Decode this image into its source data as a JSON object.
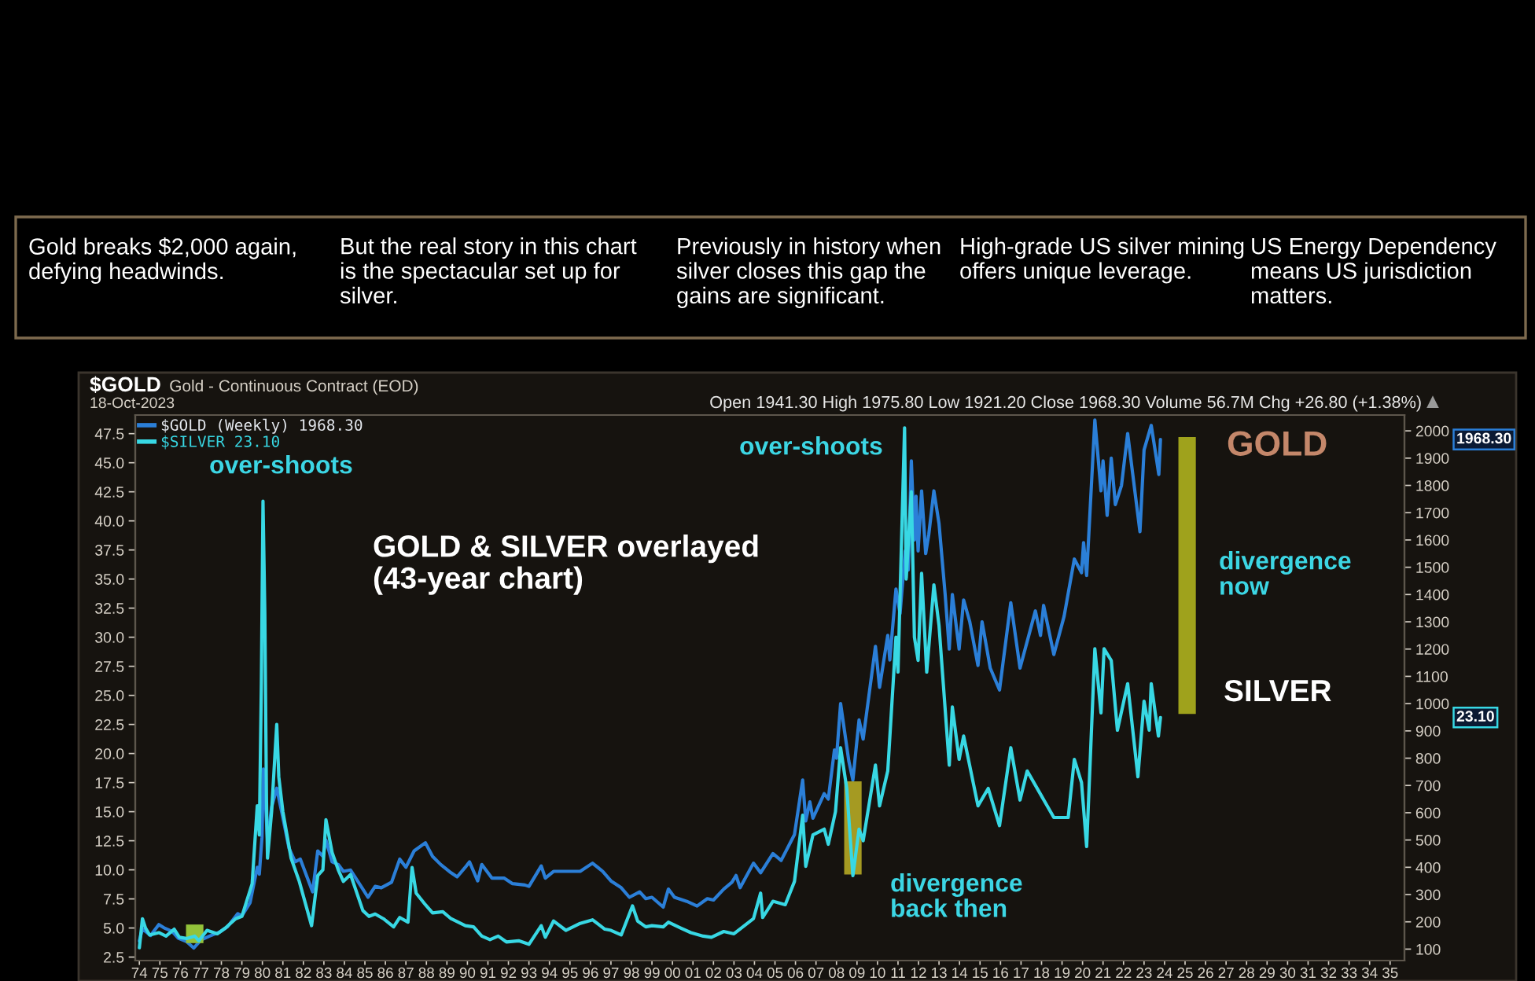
{
  "chart_data": {
    "type": "line",
    "title": "$GOLD",
    "subtitle": "Gold - Continuous Contract (EOD)",
    "annotations": [
      "Gold breaks $2,000 again, defying headwinds.",
      "But the real story in this chart is the spectacular set up for silver.",
      "Previously in history when silver closes this gap the gains are significant.",
      "High-grade US silver mining offers unique leverage.",
      "US Energy Dependency means US jurisdiction matters.",
      "18-Oct-2023",
      "Open 1941.30 High 1975.80 Low 1921.20 Close 1968.30 Volume 56.7M Chg +26.80 (+1.38%)",
      "GOLD & SILVER overlayed (43-year chart)",
      "over-shoots",
      "over-shoots",
      "GOLD",
      "divergence now",
      "SILVER",
      "divergence back then",
      "1968.30",
      "23.10"
    ],
    "series": [
      {
        "name": "$GOLD (Weekly) 1968.30",
        "color": "#2b7fd8",
        "axis": "y2",
        "x": [
          1974,
          1974.15,
          1974.3,
          1974.55,
          1974.95,
          1975.2,
          1975.6,
          1975.9,
          1976.3,
          1976.65,
          1977,
          1977.4,
          1977.9,
          1978.3,
          1978.8,
          1979,
          1979.4,
          1979.75,
          1979.85,
          1979.98,
          1980.05,
          1980.15,
          1980.25,
          1980.45,
          1980.7,
          1980.95,
          1981.3,
          1981.6,
          1981.85,
          1982.45,
          1982.7,
          1982.95,
          1983.1,
          1983.4,
          1983.7,
          1983.95,
          1984.3,
          1984.9,
          1985.15,
          1985.5,
          1985.8,
          1986.3,
          1986.7,
          1987,
          1987.4,
          1987.95,
          1988.3,
          1988.7,
          1989.2,
          1989.5,
          1989.95,
          1990.1,
          1990.5,
          1990.7,
          1991.2,
          1991.8,
          1992.2,
          1992.8,
          1993,
          1993.6,
          1993.8,
          1994.2,
          1994.8,
          1995.5,
          1996.1,
          1996.6,
          1997,
          1997.5,
          1997.9,
          1998.4,
          1998.7,
          1999,
          1999.55,
          1999.8,
          2000.1,
          2000.7,
          2001.2,
          2001.7,
          2002,
          2002.5,
          2002.9,
          2003.1,
          2003.3,
          2003.95,
          2004.3,
          2004.9,
          2005.3,
          2005.95,
          2006.35,
          2006.5,
          2006.7,
          2006.85,
          2007.4,
          2007.6,
          2007.9,
          2008,
          2008.2,
          2008.6,
          2008.8,
          2009.1,
          2009.3,
          2009.9,
          2010.1,
          2010.5,
          2010.6,
          2010.9,
          2011.1,
          2011.35,
          2011.5,
          2011.65,
          2011.8,
          2011.88,
          2011.98,
          2012.15,
          2012.35,
          2012.5,
          2012.75,
          2013,
          2013.3,
          2013.5,
          2013.65,
          2013.98,
          2014.2,
          2014.5,
          2014.9,
          2015.1,
          2015.5,
          2015.95,
          2016.5,
          2016.95,
          2017.7,
          2017.95,
          2018.1,
          2018.6,
          2019.1,
          2019.6,
          2019.95,
          2020.05,
          2020.2,
          2020.6,
          2020.9,
          2021,
          2021.2,
          2021.4,
          2021.6,
          2021.9,
          2022.2,
          2022.8,
          2023,
          2023.35,
          2023.6,
          2023.72,
          2023.8
        ],
        "values": [
          130,
          175,
          165,
          150,
          190,
          178,
          165,
          140,
          128,
          104,
          133,
          147,
          162,
          182,
          230,
          222,
          270,
          400,
          375,
          510,
          760,
          640,
          500,
          620,
          690,
          600,
          470,
          420,
          430,
          310,
          460,
          440,
          500,
          420,
          410,
          385,
          390,
          320,
          290,
          330,
          325,
          345,
          430,
          400,
          460,
          490,
          440,
          410,
          380,
          365,
          405,
          420,
          350,
          410,
          360,
          360,
          340,
          335,
          330,
          405,
          360,
          385,
          385,
          385,
          415,
          385,
          350,
          325,
          290,
          310,
          285,
          290,
          254,
          320,
          290,
          275,
          258,
          285,
          280,
          320,
          345,
          370,
          325,
          415,
          380,
          450,
          425,
          520,
          720,
          570,
          640,
          580,
          670,
          650,
          830,
          800,
          1000,
          790,
          720,
          940,
          870,
          1210,
          1060,
          1250,
          1160,
          1420,
          1330,
          1560,
          1490,
          1890,
          1600,
          1760,
          1560,
          1780,
          1550,
          1620,
          1780,
          1660,
          1400,
          1200,
          1400,
          1200,
          1380,
          1300,
          1140,
          1300,
          1130,
          1050,
          1370,
          1130,
          1340,
          1250,
          1360,
          1180,
          1320,
          1530,
          1480,
          1590,
          1470,
          2040,
          1780,
          1890,
          1690,
          1900,
          1730,
          1800,
          1990,
          1630,
          1930,
          2020,
          1900,
          1840,
          1968.3
        ]
      },
      {
        "name": "$SILVER 23.10",
        "color": "#38d8e4",
        "x": [
          1974,
          1974.15,
          1974.3,
          1974.5,
          1974.95,
          1975.3,
          1975.7,
          1975.95,
          1976.3,
          1976.7,
          1976.9,
          1977.3,
          1977.8,
          1978.2,
          1978.7,
          1979,
          1979.5,
          1979.75,
          1979.85,
          1979.95,
          1980.03,
          1980.12,
          1980.2,
          1980.25,
          1980.45,
          1980.7,
          1980.8,
          1981,
          1981.4,
          1981.8,
          1982.4,
          1982.7,
          1982.95,
          1983.1,
          1983.4,
          1983.7,
          1983.95,
          1984.3,
          1984.9,
          1985.2,
          1985.5,
          1985.9,
          1986.4,
          1986.7,
          1987.1,
          1987.3,
          1987.5,
          1987.95,
          1988.3,
          1988.8,
          1989.2,
          1989.9,
          1990.3,
          1990.7,
          1991.1,
          1991.5,
          1991.9,
          1992.5,
          1993,
          1993.6,
          1993.8,
          1994.2,
          1994.8,
          1995.5,
          1996.1,
          1996.7,
          1997,
          1997.5,
          1998.05,
          1998.3,
          1998.7,
          1999,
          1999.55,
          1999.8,
          2000.4,
          2000.9,
          2001.5,
          2001.9,
          2002.5,
          2003,
          2003.95,
          2004.3,
          2004.4,
          2004.9,
          2005.5,
          2005.95,
          2006.35,
          2006.5,
          2006.85,
          2007.4,
          2007.6,
          2007.95,
          2008.2,
          2008.5,
          2008.8,
          2009.1,
          2009.3,
          2009.9,
          2010.1,
          2010.5,
          2010.9,
          2011,
          2011.32,
          2011.4,
          2011.65,
          2011.8,
          2011.98,
          2012.15,
          2012.4,
          2012.75,
          2013,
          2013.5,
          2013.65,
          2013.98,
          2014.2,
          2014.9,
          2015.4,
          2015.95,
          2016.5,
          2016.95,
          2017.3,
          2017.95,
          2018.6,
          2019.3,
          2019.6,
          2019.95,
          2020.2,
          2020.6,
          2020.9,
          2021.05,
          2021.4,
          2021.7,
          2022.2,
          2022.7,
          2023,
          2023.25,
          2023.35,
          2023.7,
          2023.8
        ],
        "values": [
          3.3,
          5.8,
          5.0,
          4.4,
          4.6,
          4.3,
          4.9,
          4.2,
          4.1,
          4.3,
          3.9,
          4.8,
          4.5,
          5.0,
          5.8,
          6.0,
          8.8,
          15.5,
          13.0,
          26.0,
          41.7,
          32.0,
          16.0,
          11.0,
          15.0,
          22.5,
          18.0,
          15.0,
          11.0,
          9.0,
          5.2,
          9.5,
          10.0,
          14.3,
          11.5,
          10.0,
          9.0,
          9.6,
          6.5,
          6.0,
          6.2,
          5.8,
          5.1,
          5.9,
          5.5,
          10.2,
          8.0,
          7.0,
          6.3,
          6.4,
          5.8,
          5.2,
          5.1,
          4.3,
          4.0,
          4.3,
          3.8,
          3.9,
          3.6,
          5.2,
          4.2,
          5.6,
          4.8,
          5.4,
          5.7,
          4.9,
          4.8,
          4.4,
          6.9,
          5.6,
          5.1,
          5.2,
          5.1,
          5.5,
          5.0,
          4.6,
          4.3,
          4.2,
          4.7,
          4.5,
          5.8,
          8.0,
          5.9,
          7.3,
          7.0,
          9.0,
          14.7,
          10.3,
          13.0,
          13.5,
          12.2,
          15.0,
          20.5,
          17.0,
          9.5,
          13.5,
          12.5,
          19.0,
          15.5,
          18.5,
          30.0,
          27.0,
          48.0,
          35.0,
          42.5,
          30.0,
          28.0,
          35.5,
          27.0,
          34.5,
          31.0,
          19.0,
          24.0,
          19.5,
          21.5,
          15.5,
          17.0,
          13.8,
          20.5,
          16.0,
          18.5,
          16.5,
          14.5,
          14.5,
          19.5,
          17.5,
          12.0,
          29.0,
          23.5,
          29.0,
          28.0,
          22.0,
          26.0,
          18.0,
          24.5,
          22.0,
          26.0,
          21.5,
          23.1
        ]
      },
      {
        "type": "bar",
        "x": [
          1976.7,
          2008.8,
          2025.1
        ],
        "base": [
          3.7,
          9.6,
          23.4
        ],
        "values": [
          1.6,
          8.0,
          23.8
        ],
        "colors": [
          "#93c23a",
          "#a59a22",
          "#9fa21c"
        ]
      }
    ],
    "xlim": [
      1973.8,
      2035.7
    ],
    "xticks": [
      {
        "value": 1974,
        "label": "74"
      },
      {
        "value": 1975,
        "label": "75"
      },
      {
        "value": 1976,
        "label": "76"
      },
      {
        "value": 1977,
        "label": "77"
      },
      {
        "value": 1978,
        "label": "78"
      },
      {
        "value": 1979,
        "label": "79"
      },
      {
        "value": 1980,
        "label": "80"
      },
      {
        "value": 1981,
        "label": "81"
      },
      {
        "value": 1982,
        "label": "82"
      },
      {
        "value": 1983,
        "label": "83"
      },
      {
        "value": 1984,
        "label": "84"
      },
      {
        "value": 1985,
        "label": "85"
      },
      {
        "value": 1986,
        "label": "86"
      },
      {
        "value": 1987,
        "label": "87"
      },
      {
        "value": 1988,
        "label": "88"
      },
      {
        "value": 1989,
        "label": "89"
      },
      {
        "value": 1990,
        "label": "90"
      },
      {
        "value": 1991,
        "label": "91"
      },
      {
        "value": 1992,
        "label": "92"
      },
      {
        "value": 1993,
        "label": "93"
      },
      {
        "value": 1994,
        "label": "94"
      },
      {
        "value": 1995,
        "label": "95"
      },
      {
        "value": 1996,
        "label": "96"
      },
      {
        "value": 1997,
        "label": "97"
      },
      {
        "value": 1998,
        "label": "98"
      },
      {
        "value": 1999,
        "label": "99"
      },
      {
        "value": 2000,
        "label": "00"
      },
      {
        "value": 2001,
        "label": "01"
      },
      {
        "value": 2002,
        "label": "02"
      },
      {
        "value": 2003,
        "label": "03"
      },
      {
        "value": 2004,
        "label": "04"
      },
      {
        "value": 2005,
        "label": "05"
      },
      {
        "value": 2006,
        "label": "06"
      },
      {
        "value": 2007,
        "label": "07"
      },
      {
        "value": 2008,
        "label": "08"
      },
      {
        "value": 2009,
        "label": "09"
      },
      {
        "value": 2010,
        "label": "10"
      },
      {
        "value": 2011,
        "label": "11"
      },
      {
        "value": 2012,
        "label": "12"
      },
      {
        "value": 2013,
        "label": "13"
      },
      {
        "value": 2014,
        "label": "14"
      },
      {
        "value": 2015,
        "label": "15"
      },
      {
        "value": 2016,
        "label": "16"
      },
      {
        "value": 2017,
        "label": "17"
      },
      {
        "value": 2018,
        "label": "18"
      },
      {
        "value": 2019,
        "label": "19"
      },
      {
        "value": 2020,
        "label": "20"
      },
      {
        "value": 2021,
        "label": "21"
      },
      {
        "value": 2022,
        "label": "22"
      },
      {
        "value": 2023,
        "label": "23"
      },
      {
        "value": 2024,
        "label": "24"
      },
      {
        "value": 2025,
        "label": "25"
      },
      {
        "value": 2026,
        "label": "26"
      },
      {
        "value": 2027,
        "label": "27"
      },
      {
        "value": 2028,
        "label": "28"
      },
      {
        "value": 2029,
        "label": "29"
      },
      {
        "value": 2030,
        "label": "30"
      },
      {
        "value": 2031,
        "label": "31"
      },
      {
        "value": 2032,
        "label": "32"
      },
      {
        "value": 2033,
        "label": "33"
      },
      {
        "value": 2034,
        "label": "34"
      },
      {
        "value": 2035,
        "label": "35"
      }
    ],
    "ylim": [
      2.2,
      49.1
    ],
    "yticks": [
      2.5,
      {
        "value": 5,
        "label": "5.0"
      },
      7.5,
      {
        "value": 10,
        "label": "10.0"
      },
      12.5,
      {
        "value": 15,
        "label": "15.0"
      },
      17.5,
      {
        "value": 20,
        "label": "20.0"
      },
      22.5,
      {
        "value": 25,
        "label": "25.0"
      },
      27.5,
      {
        "value": 30,
        "label": "30.0"
      },
      32.5,
      {
        "value": 35,
        "label": "35.0"
      },
      37.5,
      {
        "value": 40,
        "label": "40.0"
      },
      42.5,
      {
        "value": 45,
        "label": "45.0"
      },
      47.5
    ],
    "y2lim": [
      58,
      2058
    ],
    "y2ticks": [
      100,
      200,
      300,
      400,
      500,
      600,
      700,
      800,
      900,
      1000,
      1100,
      1200,
      1300,
      1400,
      1500,
      1600,
      1700,
      1800,
      1900,
      2000
    ],
    "legend": "top left"
  }
}
